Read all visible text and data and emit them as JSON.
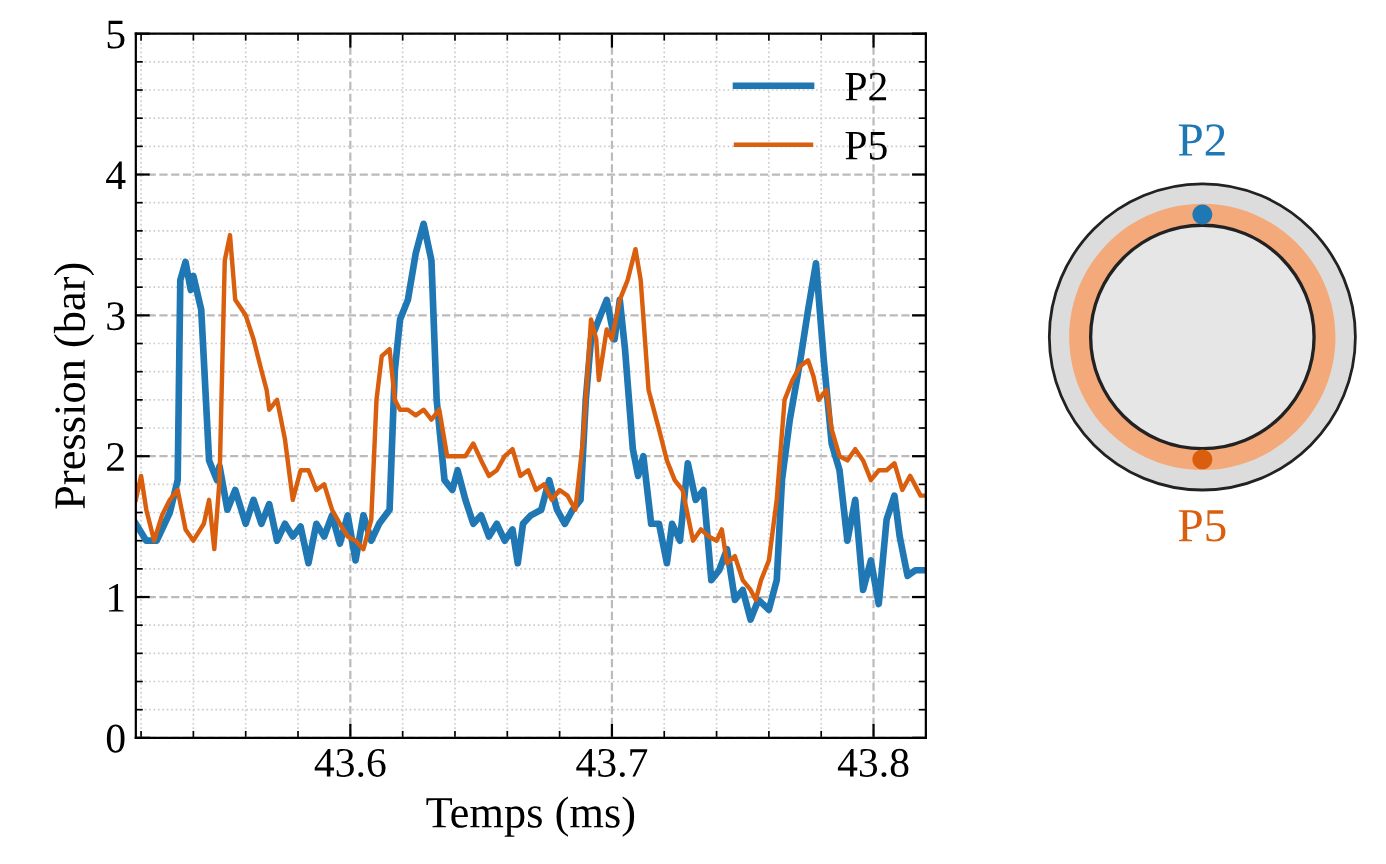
{
  "chart_data": {
    "type": "line",
    "xlabel": "Temps (ms)",
    "ylabel": "Pression (bar)",
    "xlim": [
      43.518,
      43.82
    ],
    "xticks": [
      43.6,
      43.7,
      43.8
    ],
    "ylim": [
      0,
      5
    ],
    "yticks": [
      0,
      1,
      2,
      3,
      4,
      5
    ],
    "grid": true,
    "legend": "top right",
    "line_style": "solid",
    "marker": "none",
    "annotations": [
      "P2",
      "P5"
    ],
    "series": [
      {
        "name": "P2",
        "color": "#1f77b4",
        "x": [
          43.518,
          43.522,
          43.526,
          43.531,
          43.534,
          43.535,
          43.537,
          43.539,
          43.54,
          43.543,
          43.546,
          43.549,
          43.55,
          43.553,
          43.556,
          43.56,
          43.563,
          43.566,
          43.569,
          43.572,
          43.575,
          43.578,
          43.581,
          43.584,
          43.587,
          43.59,
          43.593,
          43.596,
          43.599,
          43.602,
          43.605,
          43.608,
          43.611,
          43.615,
          43.617,
          43.619,
          43.622,
          43.625,
          43.628,
          43.631,
          43.633,
          43.636,
          43.639,
          43.641,
          43.644,
          43.647,
          43.65,
          43.653,
          43.656,
          43.659,
          43.662,
          43.664,
          43.666,
          43.669,
          43.673,
          43.676,
          43.679,
          43.682,
          43.685,
          43.688,
          43.69,
          43.692,
          43.695,
          43.698,
          43.701,
          43.703,
          43.705,
          43.708,
          43.71,
          43.712,
          43.715,
          43.718,
          43.721,
          43.723,
          43.726,
          43.729,
          43.732,
          43.735,
          43.738,
          43.741,
          43.744,
          43.747,
          43.75,
          43.753,
          43.756,
          43.76,
          43.763,
          43.765,
          43.768,
          43.772,
          43.775,
          43.778,
          43.781,
          43.784,
          43.787,
          43.79,
          43.793,
          43.796,
          43.799,
          43.802,
          43.805,
          43.808,
          43.81,
          43.813,
          43.816,
          43.82
        ],
        "values": [
          1.52,
          1.4,
          1.4,
          1.6,
          1.83,
          3.25,
          3.38,
          3.18,
          3.28,
          3.04,
          1.97,
          1.83,
          1.93,
          1.62,
          1.76,
          1.52,
          1.69,
          1.52,
          1.66,
          1.4,
          1.52,
          1.43,
          1.5,
          1.24,
          1.52,
          1.43,
          1.58,
          1.38,
          1.58,
          1.26,
          1.58,
          1.4,
          1.52,
          1.62,
          2.61,
          2.97,
          3.11,
          3.44,
          3.65,
          3.39,
          2.4,
          1.83,
          1.76,
          1.9,
          1.69,
          1.52,
          1.58,
          1.43,
          1.52,
          1.4,
          1.48,
          1.24,
          1.52,
          1.58,
          1.62,
          1.83,
          1.62,
          1.52,
          1.62,
          1.69,
          2.4,
          2.83,
          2.97,
          3.11,
          2.83,
          3.11,
          2.76,
          2.05,
          1.86,
          2.0,
          1.52,
          1.52,
          1.24,
          1.52,
          1.4,
          1.95,
          1.69,
          1.76,
          1.12,
          1.19,
          1.34,
          0.98,
          1.05,
          0.84,
          0.98,
          0.91,
          1.12,
          1.83,
          2.26,
          2.68,
          3.04,
          3.37,
          2.68,
          2.09,
          1.9,
          1.4,
          1.69,
          1.05,
          1.26,
          0.95,
          1.55,
          1.72,
          1.43,
          1.15,
          1.19,
          1.19
        ]
      },
      {
        "name": "P5",
        "color": "#d95f0e",
        "x": [
          43.518,
          43.52,
          43.522,
          43.525,
          43.528,
          43.531,
          43.534,
          43.537,
          43.54,
          43.544,
          43.546,
          43.548,
          43.55,
          43.552,
          43.554,
          43.556,
          43.56,
          43.563,
          43.566,
          43.568,
          43.569,
          43.572,
          43.575,
          43.578,
          43.581,
          43.584,
          43.587,
          43.59,
          43.593,
          43.596,
          43.599,
          43.602,
          43.605,
          43.608,
          43.61,
          43.612,
          43.615,
          43.617,
          43.619,
          43.622,
          43.625,
          43.628,
          43.631,
          43.634,
          43.637,
          43.64,
          43.644,
          43.647,
          43.65,
          43.653,
          43.656,
          43.659,
          43.662,
          43.665,
          43.668,
          43.671,
          43.674,
          43.677,
          43.68,
          43.683,
          43.686,
          43.689,
          43.692,
          43.694,
          43.695,
          43.698,
          43.7,
          43.703,
          43.706,
          43.709,
          43.711,
          43.714,
          43.717,
          43.718,
          43.721,
          43.724,
          43.727,
          43.731,
          43.734,
          43.737,
          43.74,
          43.742,
          43.744,
          43.747,
          43.75,
          43.753,
          43.755,
          43.757,
          43.76,
          43.763,
          43.766,
          43.769,
          43.772,
          43.775,
          43.777,
          43.779,
          43.782,
          43.784,
          43.787,
          43.79,
          43.793,
          43.796,
          43.799,
          43.802,
          43.805,
          43.808,
          43.811,
          43.814,
          43.818,
          43.82
        ],
        "values": [
          1.69,
          1.86,
          1.62,
          1.4,
          1.58,
          1.69,
          1.76,
          1.48,
          1.4,
          1.52,
          1.69,
          1.34,
          1.83,
          3.39,
          3.57,
          3.11,
          3.0,
          2.83,
          2.61,
          2.47,
          2.33,
          2.4,
          2.12,
          1.69,
          1.9,
          1.9,
          1.76,
          1.8,
          1.62,
          1.52,
          1.43,
          1.4,
          1.34,
          1.55,
          2.4,
          2.71,
          2.76,
          2.4,
          2.33,
          2.33,
          2.29,
          2.33,
          2.26,
          2.33,
          2.0,
          2.0,
          2.0,
          2.09,
          1.97,
          1.86,
          1.9,
          2.0,
          2.05,
          1.86,
          1.9,
          1.76,
          1.8,
          1.69,
          1.76,
          1.72,
          1.62,
          2.12,
          2.97,
          2.83,
          2.54,
          2.9,
          2.83,
          3.11,
          3.25,
          3.47,
          3.25,
          2.47,
          2.26,
          2.19,
          1.97,
          1.83,
          1.76,
          1.4,
          1.48,
          1.43,
          1.4,
          1.48,
          1.24,
          1.29,
          1.12,
          1.05,
          0.98,
          1.12,
          1.26,
          1.69,
          2.4,
          2.54,
          2.64,
          2.68,
          2.57,
          2.4,
          2.47,
          2.19,
          2.0,
          1.97,
          2.05,
          1.97,
          1.83,
          1.9,
          1.9,
          1.95,
          1.76,
          1.86,
          1.72,
          1.72
        ]
      }
    ]
  }
}
